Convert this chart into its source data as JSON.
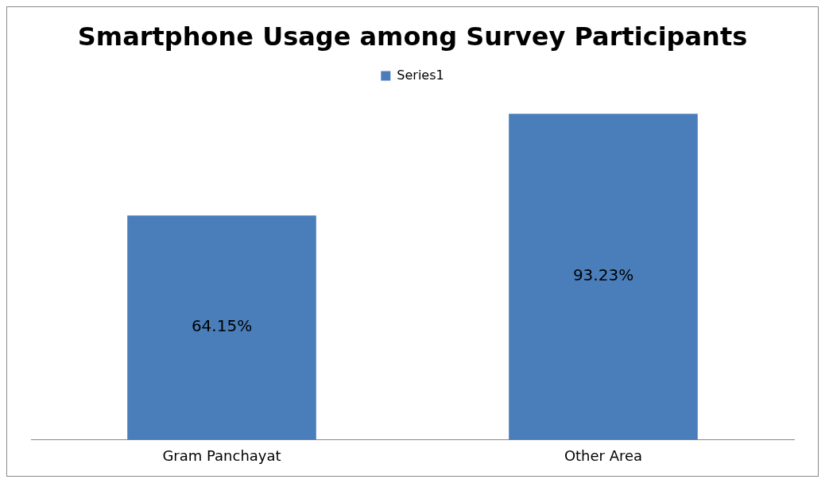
{
  "chart_data": {
    "type": "bar",
    "title": "Smartphone Usage among Survey Participants",
    "categories": [
      "Gram Panchayat",
      "Other Area"
    ],
    "series": [
      {
        "name": "Series1",
        "color": "#4a7ebb",
        "values": [
          64.15,
          93.23
        ],
        "value_labels": [
          "64.15%",
          "93.23%"
        ]
      }
    ],
    "grid": false,
    "legend": "top"
  }
}
